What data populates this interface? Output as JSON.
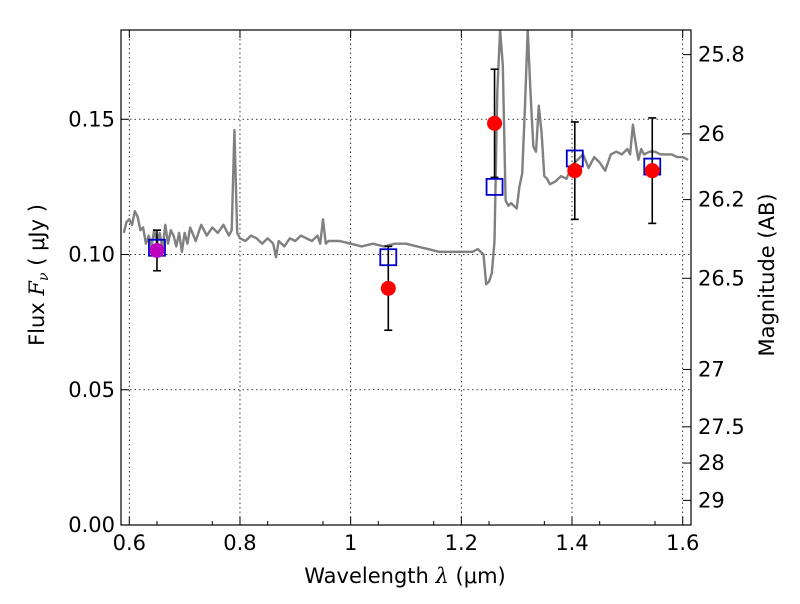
{
  "chart_data": {
    "type": "scatter",
    "title": "",
    "xlabel": "Wavelength",
    "xlabel_symbol": "λ",
    "xlabel_unit": "(μm)",
    "ylabel": "Flux",
    "ylabel_symbol": "F",
    "ylabel_sub": "ν",
    "ylabel_unit": "( μJy )",
    "y2label": "Magnitude (AB)",
    "xlim": [
      0.585,
      1.615
    ],
    "ylim": [
      0.0,
      0.183
    ],
    "grid": true,
    "x_ticks": [
      0.6,
      0.8,
      1.0,
      1.2,
      1.4,
      1.6
    ],
    "x_tick_labels": [
      "0.6",
      "0.8",
      "1",
      "1.2",
      "1.4",
      "1.6"
    ],
    "y_ticks": [
      0.0,
      0.05,
      0.1,
      0.15
    ],
    "y_tick_labels": [
      "0.00",
      "0.05",
      "0.10",
      "0.15"
    ],
    "y2_ticks": [
      {
        "label": "25.8",
        "flux": 0.1739
      },
      {
        "label": "26",
        "flux": 0.1446
      },
      {
        "label": "26.2",
        "flux": 0.1203
      },
      {
        "label": "26.5",
        "flux": 0.0912
      },
      {
        "label": "27",
        "flux": 0.0575
      },
      {
        "label": "27.5",
        "flux": 0.0363
      },
      {
        "label": "28",
        "flux": 0.0229
      },
      {
        "label": "29",
        "flux": 0.0091
      }
    ],
    "colors": {
      "spectrum": "#808080",
      "observed": "#ff0000",
      "model": "#0000cc",
      "magenta": "#bf00bf",
      "errorbar": "#000000"
    },
    "series": [
      {
        "kind": "line",
        "points": [
          [
            0.59,
            0.108
          ],
          [
            0.595,
            0.112
          ],
          [
            0.6,
            0.113
          ],
          [
            0.605,
            0.111
          ],
          [
            0.61,
            0.116
          ],
          [
            0.615,
            0.114
          ],
          [
            0.62,
            0.109
          ],
          [
            0.625,
            0.11
          ],
          [
            0.63,
            0.104
          ],
          [
            0.635,
            0.107
          ],
          [
            0.64,
            0.103
          ],
          [
            0.645,
            0.109
          ],
          [
            0.65,
            0.104
          ],
          [
            0.655,
            0.108
          ],
          [
            0.66,
            0.102
          ],
          [
            0.665,
            0.111
          ],
          [
            0.67,
            0.104
          ],
          [
            0.675,
            0.109
          ],
          [
            0.68,
            0.107
          ],
          [
            0.685,
            0.103
          ],
          [
            0.69,
            0.108
          ],
          [
            0.695,
            0.101
          ],
          [
            0.7,
            0.108
          ],
          [
            0.705,
            0.104
          ],
          [
            0.71,
            0.11
          ],
          [
            0.72,
            0.105
          ],
          [
            0.73,
            0.111
          ],
          [
            0.74,
            0.107
          ],
          [
            0.75,
            0.11
          ],
          [
            0.76,
            0.108
          ],
          [
            0.77,
            0.111
          ],
          [
            0.78,
            0.107
          ],
          [
            0.785,
            0.109
          ],
          [
            0.79,
            0.146
          ],
          [
            0.795,
            0.108
          ],
          [
            0.8,
            0.106
          ],
          [
            0.81,
            0.105
          ],
          [
            0.82,
            0.107
          ],
          [
            0.83,
            0.106
          ],
          [
            0.84,
            0.104
          ],
          [
            0.85,
            0.106
          ],
          [
            0.86,
            0.104
          ],
          [
            0.865,
            0.099
          ],
          [
            0.87,
            0.105
          ],
          [
            0.88,
            0.103
          ],
          [
            0.89,
            0.106
          ],
          [
            0.9,
            0.105
          ],
          [
            0.91,
            0.107
          ],
          [
            0.92,
            0.106
          ],
          [
            0.93,
            0.105
          ],
          [
            0.94,
            0.107
          ],
          [
            0.945,
            0.104
          ],
          [
            0.95,
            0.113
          ],
          [
            0.955,
            0.104
          ],
          [
            0.96,
            0.105
          ],
          [
            0.98,
            0.105
          ],
          [
            1.0,
            0.104
          ],
          [
            1.02,
            0.103
          ],
          [
            1.04,
            0.104
          ],
          [
            1.06,
            0.103
          ],
          [
            1.08,
            0.104
          ],
          [
            1.1,
            0.104
          ],
          [
            1.12,
            0.103
          ],
          [
            1.14,
            0.102
          ],
          [
            1.16,
            0.101
          ],
          [
            1.18,
            0.101
          ],
          [
            1.2,
            0.101
          ],
          [
            1.22,
            0.101
          ],
          [
            1.23,
            0.102
          ],
          [
            1.24,
            0.1
          ],
          [
            1.245,
            0.089
          ],
          [
            1.25,
            0.09
          ],
          [
            1.255,
            0.093
          ],
          [
            1.26,
            0.105
          ],
          [
            1.265,
            0.16
          ],
          [
            1.27,
            0.183
          ],
          [
            1.275,
            0.17
          ],
          [
            1.28,
            0.12
          ],
          [
            1.285,
            0.118
          ],
          [
            1.29,
            0.119
          ],
          [
            1.3,
            0.117
          ],
          [
            1.305,
            0.125
          ],
          [
            1.31,
            0.13
          ],
          [
            1.315,
            0.155
          ],
          [
            1.32,
            0.183
          ],
          [
            1.325,
            0.16
          ],
          [
            1.33,
            0.14
          ],
          [
            1.335,
            0.138
          ],
          [
            1.34,
            0.155
          ],
          [
            1.345,
            0.145
          ],
          [
            1.35,
            0.129
          ],
          [
            1.355,
            0.128
          ],
          [
            1.36,
            0.126
          ],
          [
            1.37,
            0.127
          ],
          [
            1.38,
            0.129
          ],
          [
            1.39,
            0.128
          ],
          [
            1.4,
            0.133
          ],
          [
            1.41,
            0.135
          ],
          [
            1.42,
            0.137
          ],
          [
            1.43,
            0.132
          ],
          [
            1.44,
            0.136
          ],
          [
            1.45,
            0.134
          ],
          [
            1.46,
            0.131
          ],
          [
            1.47,
            0.137
          ],
          [
            1.48,
            0.138
          ],
          [
            1.49,
            0.137
          ],
          [
            1.5,
            0.139
          ],
          [
            1.505,
            0.137
          ],
          [
            1.51,
            0.148
          ],
          [
            1.515,
            0.141
          ],
          [
            1.52,
            0.135
          ],
          [
            1.525,
            0.139
          ],
          [
            1.53,
            0.137
          ],
          [
            1.54,
            0.138
          ],
          [
            1.55,
            0.138
          ],
          [
            1.56,
            0.137
          ],
          [
            1.57,
            0.137
          ],
          [
            1.58,
            0.137
          ],
          [
            1.59,
            0.136
          ],
          [
            1.6,
            0.136
          ],
          [
            1.61,
            0.135
          ]
        ]
      },
      {
        "kind": "errorbar",
        "marker": "circle",
        "points": [
          {
            "x": 0.65,
            "y": 0.1015,
            "yerr_low": 0.0075,
            "yerr_high": 0.0075
          },
          {
            "x": 1.068,
            "y": 0.0875,
            "yerr_low": 0.0155,
            "yerr_high": 0.0155
          },
          {
            "x": 1.26,
            "y": 0.1485,
            "yerr_low": 0.02,
            "yerr_high": 0.02
          },
          {
            "x": 1.405,
            "y": 0.131,
            "yerr_low": 0.018,
            "yerr_high": 0.018
          },
          {
            "x": 1.545,
            "y": 0.131,
            "yerr_low": 0.0195,
            "yerr_high": 0.0195
          }
        ]
      },
      {
        "kind": "scatter",
        "marker": "square",
        "points": [
          {
            "x": 0.65,
            "y": 0.1025
          },
          {
            "x": 1.068,
            "y": 0.099
          },
          {
            "x": 1.26,
            "y": 0.125
          },
          {
            "x": 1.405,
            "y": 0.1355
          },
          {
            "x": 1.545,
            "y": 0.1325
          }
        ]
      }
    ]
  }
}
